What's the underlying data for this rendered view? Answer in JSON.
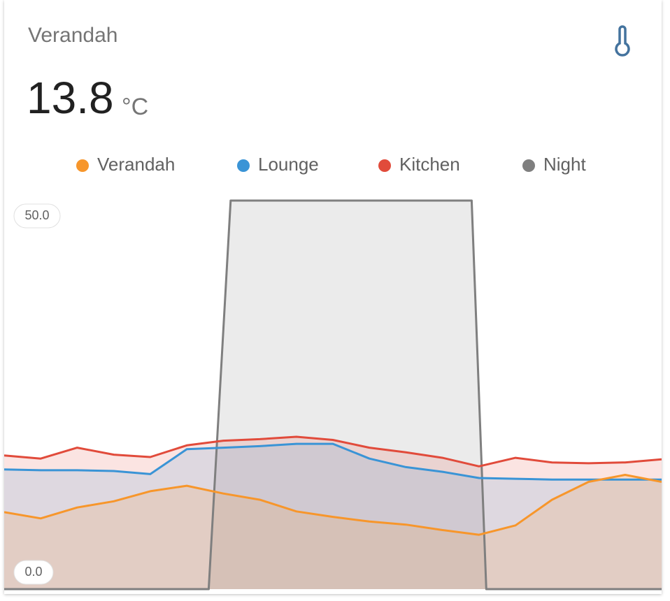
{
  "chart_data": {
    "type": "line",
    "title": "Verandah",
    "current_value": "13.8",
    "unit": "°C",
    "x": [
      0,
      1,
      2,
      3,
      4,
      5,
      6,
      7,
      8,
      9,
      10,
      11,
      12,
      13,
      14,
      15,
      16,
      17,
      18
    ],
    "xlim": [
      0,
      18
    ],
    "ylim": [
      0,
      50
    ],
    "yticks": [
      {
        "value": 50,
        "label": "50.0"
      },
      {
        "value": 0,
        "label": "0.0"
      }
    ],
    "series": [
      {
        "name": "Verandah",
        "color": "#f7962b",
        "values": [
          9.9,
          9.1,
          10.5,
          11.3,
          12.6,
          13.3,
          12.3,
          11.5,
          10.0,
          9.3,
          8.7,
          8.3,
          7.6,
          7.0,
          8.2,
          11.5,
          13.8,
          14.7,
          13.8
        ]
      },
      {
        "name": "Lounge",
        "color": "#3a94d6",
        "values": [
          15.4,
          15.3,
          15.3,
          15.2,
          14.8,
          18.0,
          18.2,
          18.4,
          18.7,
          18.7,
          16.8,
          15.7,
          15.1,
          14.3,
          14.2,
          14.1,
          14.1,
          14.1,
          14.1
        ]
      },
      {
        "name": "Kitchen",
        "color": "#e14b3b",
        "values": [
          17.2,
          16.8,
          18.2,
          17.3,
          17.0,
          18.5,
          19.1,
          19.3,
          19.6,
          19.2,
          18.2,
          17.6,
          16.9,
          15.8,
          16.9,
          16.3,
          16.2,
          16.3,
          16.7
        ]
      },
      {
        "name": "Night",
        "color": "#7f7f7f",
        "x": [
          0,
          5.6,
          6.2,
          12.8,
          13.2,
          18
        ],
        "values": [
          0,
          0,
          50,
          50,
          0,
          0
        ]
      }
    ]
  }
}
